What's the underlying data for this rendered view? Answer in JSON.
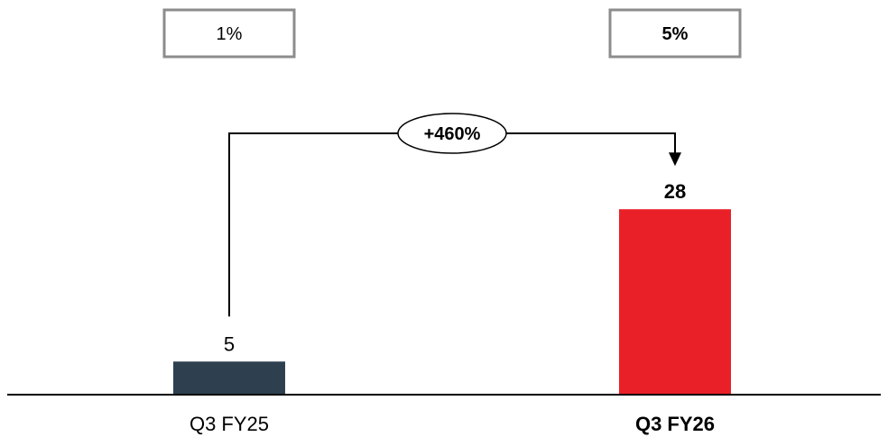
{
  "chart_data": {
    "type": "bar",
    "categories": [
      "Q3 FY25",
      "Q3 FY26"
    ],
    "values": [
      5,
      28
    ],
    "value_labels": [
      "5",
      "28"
    ],
    "ratio_labels": [
      "1%",
      "5%"
    ],
    "change_label": "+460%",
    "bar_colors": [
      "#2e4050",
      "#ea2028"
    ],
    "emphasis": [
      false,
      true
    ],
    "ylim": [
      0,
      35
    ],
    "title": "",
    "xlabel": "",
    "ylabel": ""
  },
  "colors": {
    "box_border": "#8c8c8c",
    "axis": "#000000"
  }
}
